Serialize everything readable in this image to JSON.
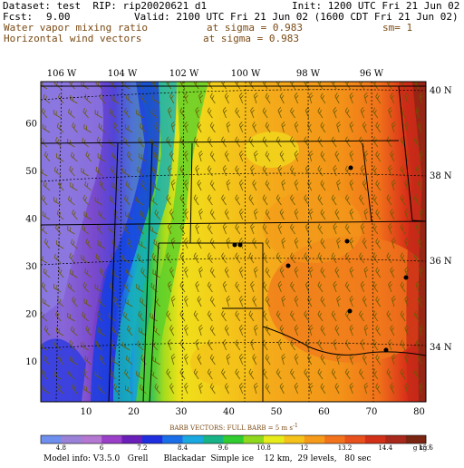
{
  "header": {
    "dataset": "Dataset: test  RIP: rip20020621 d1",
    "init": "Init: 1200 UTC Fri 21 Jun 02",
    "fcst_label": "Fcst:",
    "fcst_value": "9.00",
    "valid": "Valid: 2100 UTC Fri 21 Jun 02 (1600 CDT Fri 21 Jun 02)",
    "field1": "Water vapor mixing ratio",
    "field1_sigma": "at sigma = 0.983",
    "field1_sm": "sm= 1",
    "field2": "Horizontal wind vectors",
    "field2_sigma": "at sigma = 0.983"
  },
  "map": {
    "lon_labels": [
      "106 W",
      "104 W",
      "102 W",
      "100 W",
      "98 W",
      "96 W"
    ],
    "lat_labels": [
      "40 N",
      "38 N",
      "36 N",
      "34 N"
    ],
    "x_ticks": [
      "10",
      "20",
      "30",
      "40",
      "50",
      "60",
      "70",
      "80"
    ],
    "y_ticks": [
      "10",
      "20",
      "30",
      "40",
      "50",
      "60"
    ]
  },
  "legend": {
    "title": "BARB VECTORS:  FULL BARB = 5 m s",
    "title_exp": "-1",
    "values": [
      "4.8",
      "6",
      "7.2",
      "8.4",
      "9.6",
      "10.8",
      "12",
      "13.2",
      "14.4",
      "15.6"
    ],
    "unit": "g kg",
    "unit_exp": "-1",
    "colors": [
      "#6f8fef",
      "#9a82d8",
      "#b478d2",
      "#9b3fc8",
      "#6a1fb8",
      "#1f2fe0",
      "#1a6fe8",
      "#1aa8e0",
      "#18b488",
      "#30cc30",
      "#8ed81e",
      "#e6ec1c",
      "#f4c21a",
      "#f69a1a",
      "#f2731c",
      "#e8501c",
      "#d23018",
      "#a8281c",
      "#7a2412"
    ]
  },
  "footer": {
    "model_info": "Model info: V3.5.0   Grell      Blackadar  Simple ice    12 km,  29 levels,   80 sec"
  }
}
